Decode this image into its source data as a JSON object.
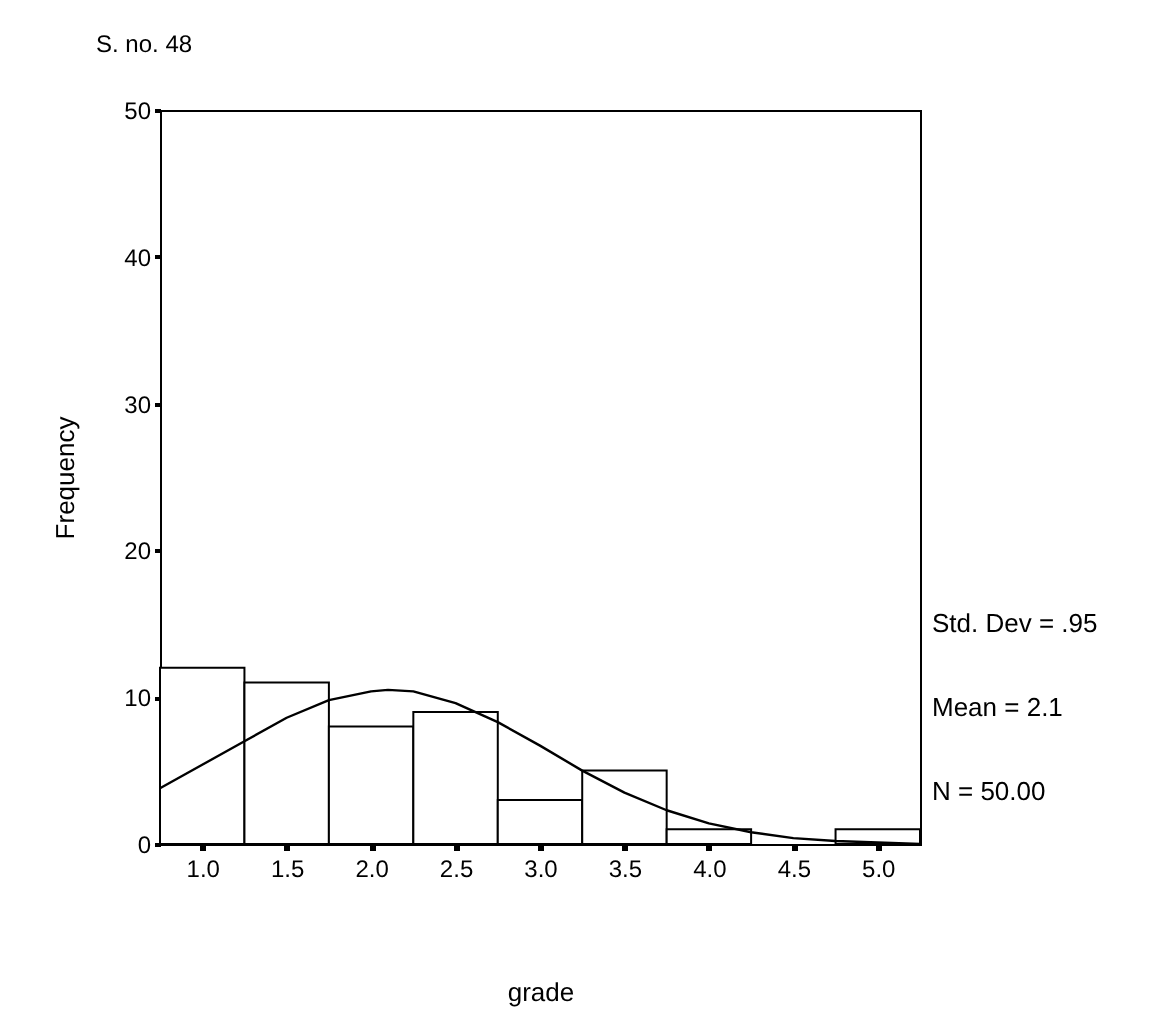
{
  "chart_data": {
    "type": "histogram",
    "title": "S. no. 48",
    "xlabel": "grade",
    "ylabel": "Frequency",
    "bins": [
      0.75,
      1.25,
      1.75,
      2.25,
      2.75,
      3.25,
      3.75,
      4.25,
      4.75,
      5.25
    ],
    "series": [
      {
        "type": "histogram",
        "color": "#ffffff",
        "values": [
          12,
          11,
          8,
          9,
          3,
          5,
          1,
          0,
          1
        ]
      },
      {
        "type": "line",
        "color": "#000000",
        "x": [
          0.75,
          1.0,
          1.25,
          1.5,
          1.75,
          2.0,
          2.1,
          2.25,
          2.5,
          2.75,
          3.0,
          3.25,
          3.5,
          3.75,
          4.0,
          4.25,
          4.5,
          4.75,
          5.0,
          5.25
        ],
        "values": [
          3.8,
          5.4,
          7.0,
          8.6,
          9.8,
          10.4,
          10.5,
          10.4,
          9.6,
          8.3,
          6.7,
          5.0,
          3.5,
          2.3,
          1.4,
          0.8,
          0.4,
          0.2,
          0.1,
          0.0
        ]
      }
    ],
    "xlim": [
      0.75,
      5.25
    ],
    "xticks": [
      {
        "value": 1,
        "label": "1.0"
      },
      {
        "value": 1.5,
        "label": "1.5"
      },
      {
        "value": 2,
        "label": "2.0"
      },
      {
        "value": 2.5,
        "label": "2.5"
      },
      {
        "value": 3,
        "label": "3.0"
      },
      {
        "value": 3.5,
        "label": "3.5"
      },
      {
        "value": 4,
        "label": "4.0"
      },
      {
        "value": 4.5,
        "label": "4.5"
      },
      {
        "value": 5,
        "label": "5.0"
      }
    ],
    "ylim": [
      0,
      50
    ],
    "yticks": [
      0,
      10,
      20,
      30,
      40,
      50
    ],
    "annotations": [
      "Std. Dev = .95",
      "Mean = 2.1",
      "N = 50.00"
    ],
    "grid": false,
    "marker": "none",
    "line_style": "solid"
  }
}
